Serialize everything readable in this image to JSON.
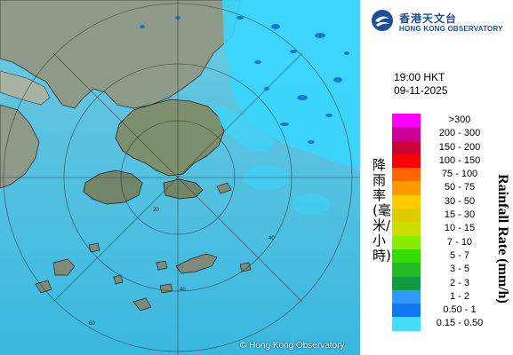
{
  "branding": {
    "logo_zh": "香港天文台",
    "logo_en": "HONG KONG OBSERVATORY",
    "copyright": "© Hong Kong Observatory"
  },
  "timestamp": {
    "time": "19:00 HKT",
    "date": "09-11-2025"
  },
  "legend": {
    "title_en": "Rainfall Rate (mm/h)",
    "title_zh": "降雨率(毫米/小時)",
    "items": [
      {
        "label": ">300",
        "color": "#ff00ff"
      },
      {
        "label": "200 - 300",
        "color": "#cc0099"
      },
      {
        "label": "150 - 200",
        "color": "#cc0033"
      },
      {
        "label": "100 - 150",
        "color": "#ff0000"
      },
      {
        "label": "75 - 100",
        "color": "#ff6600"
      },
      {
        "label": "50 - 75",
        "color": "#ff9900"
      },
      {
        "label": "30 - 50",
        "color": "#ffcc00"
      },
      {
        "label": "15 - 30",
        "color": "#ddcc00"
      },
      {
        "label": "10 - 15",
        "color": "#ccdd00"
      },
      {
        "label": "7 - 10",
        "color": "#88ee00"
      },
      {
        "label": "5 - 7",
        "color": "#33dd00"
      },
      {
        "label": "3 - 5",
        "color": "#22bb22"
      },
      {
        "label": "2 - 3",
        "color": "#119944"
      },
      {
        "label": "1 - 2",
        "color": "#3399ff"
      },
      {
        "label": "0.50 - 1",
        "color": "#1177ee"
      },
      {
        "label": "0.15 - 0.50",
        "color": "#44ddff"
      }
    ]
  },
  "map": {
    "range_rings": [
      {
        "label": "20"
      },
      {
        "label": "40"
      },
      {
        "label": "60"
      }
    ],
    "colors": {
      "sea": "#5cc6e6",
      "land": "#8a9a86",
      "echo": "#3ad6ff"
    }
  }
}
